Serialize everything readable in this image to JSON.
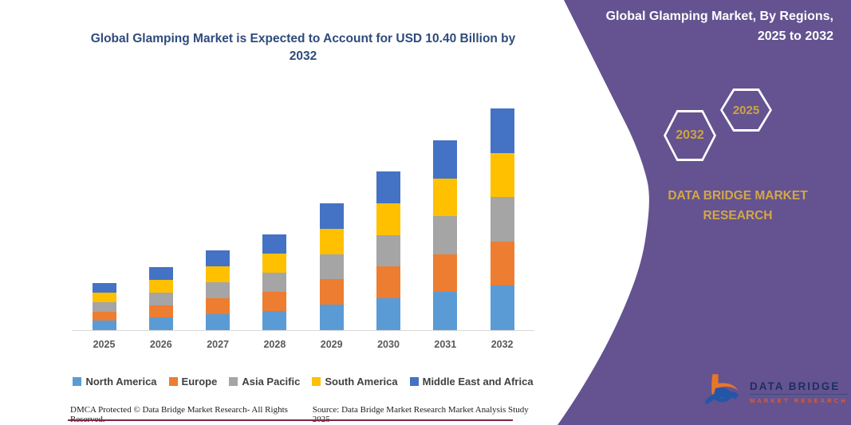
{
  "title": "Global Glamping Market is Expected to Account for USD 10.40 Billion by 2032",
  "sidebar": {
    "heading": "Global Glamping Market, By Regions, 2025 to 2032",
    "hexagon_left_year": "2032",
    "hexagon_right_year": "2025",
    "brand": "DATA BRIDGE MARKET RESEARCH",
    "background_color": "#645390",
    "accent_gold": "#cda344"
  },
  "logo": {
    "line1": "DATA BRIDGE",
    "line2": "MARKET RESEARCH"
  },
  "footer": {
    "dmca": "DMCA Protected © Data Bridge Market Research-  All Rights Reserved.",
    "source": "Source: Data Bridge Market Research  Market Analysis Study 2025"
  },
  "chart_data": {
    "type": "bar",
    "stacked": true,
    "title": "Global Glamping Market is Expected to Account for USD 10.40 Billion by 2032",
    "unit": "USD Billion",
    "categories": [
      "2025",
      "2026",
      "2027",
      "2028",
      "2029",
      "2030",
      "2031",
      "2032"
    ],
    "series": [
      {
        "name": "North America",
        "color": "#5B9BD5",
        "values": [
          0.44,
          0.59,
          0.75,
          0.9,
          1.19,
          1.49,
          1.78,
          2.08
        ]
      },
      {
        "name": "Europe",
        "color": "#ED7D31",
        "values": [
          0.44,
          0.59,
          0.75,
          0.9,
          1.19,
          1.49,
          1.78,
          2.08
        ]
      },
      {
        "name": "Asia Pacific",
        "color": "#A5A5A5",
        "values": [
          0.44,
          0.59,
          0.75,
          0.9,
          1.19,
          1.49,
          1.78,
          2.08
        ]
      },
      {
        "name": "South America",
        "color": "#FFC000",
        "values": [
          0.44,
          0.59,
          0.75,
          0.9,
          1.19,
          1.49,
          1.78,
          2.08
        ]
      },
      {
        "name": "Middle East and Africa",
        "color": "#4472C4",
        "values": [
          0.44,
          0.59,
          0.75,
          0.9,
          1.19,
          1.49,
          1.78,
          2.08
        ]
      }
    ],
    "totals": [
      2.2,
      2.95,
      3.75,
      4.5,
      5.95,
      7.45,
      8.9,
      10.4
    ],
    "ylim": [
      0,
      10.4
    ],
    "grid": false,
    "legend_position": "bottom",
    "xlabel": "",
    "ylabel": ""
  }
}
